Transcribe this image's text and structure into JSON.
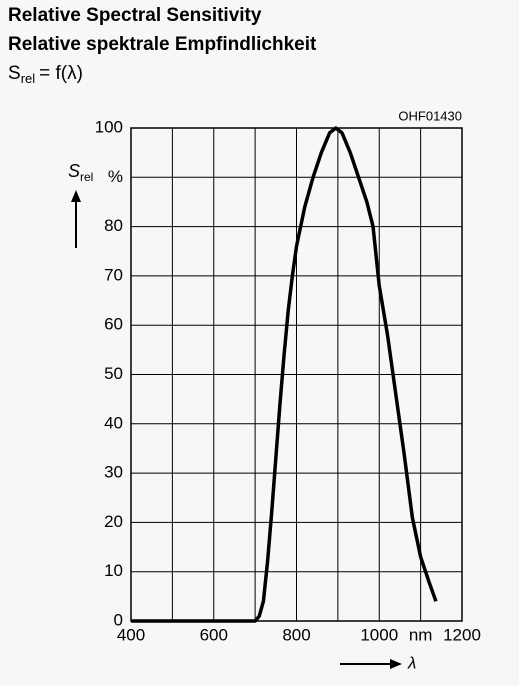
{
  "title": "Relative Spectral Sensitivity",
  "subtitle": "Relative spektrale Empfindlichkeit",
  "formula": {
    "symbol": "S",
    "subscript": "rel",
    "rest": "= f(λ)"
  },
  "chart_data": {
    "type": "line",
    "code": "OHF01430",
    "y_label": {
      "symbol": "S",
      "subscript": "rel"
    },
    "x_label": "λ",
    "x": [
      400,
      700,
      710,
      720,
      730,
      740,
      750,
      760,
      770,
      780,
      790,
      800,
      820,
      840,
      860,
      880,
      895,
      910,
      930,
      950,
      970,
      985,
      1000,
      1020,
      1040,
      1060,
      1080,
      1100,
      1120,
      1137
    ],
    "series": [
      {
        "name": "Srel",
        "color": "#000000",
        "values": [
          0,
          0,
          1,
          4,
          12,
          22,
          33,
          44,
          54,
          63,
          70,
          76,
          84,
          90,
          95,
          99,
          100,
          99,
          95,
          90,
          85,
          80,
          68,
          58,
          46,
          34,
          21,
          13,
          8,
          4
        ]
      }
    ],
    "xlim": [
      400,
      1200
    ],
    "ylim": [
      0,
      100
    ],
    "xticks": [
      400,
      {
        "value": 500,
        "label": null
      },
      600,
      {
        "value": 700,
        "label": null
      },
      800,
      {
        "value": 900,
        "label": null
      },
      1000,
      {
        "value": 1100,
        "label": "nm"
      },
      1200
    ],
    "yticks": [
      0,
      10,
      20,
      30,
      40,
      50,
      60,
      70,
      80,
      {
        "value": 90,
        "label": "%"
      },
      100
    ],
    "grid": true
  }
}
